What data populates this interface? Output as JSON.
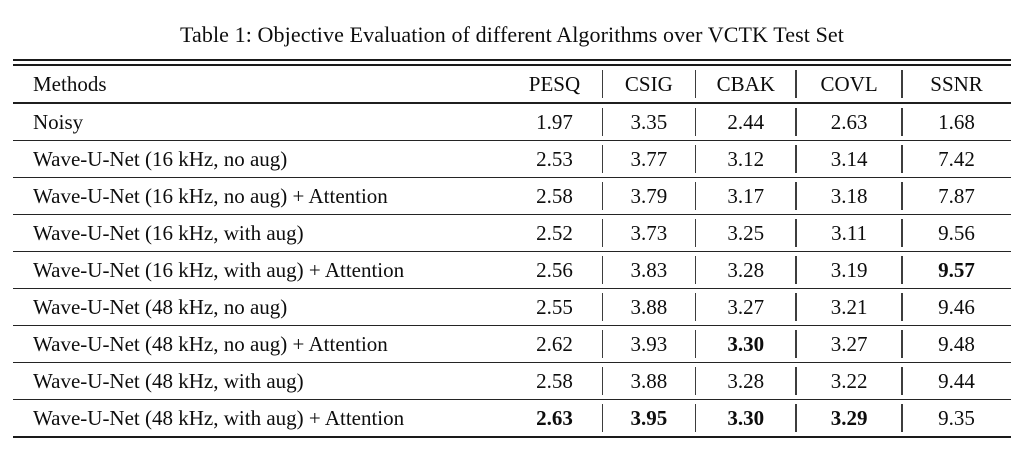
{
  "title": "Table 1: Objective Evaluation of different Algorithms over VCTK Test Set",
  "table": {
    "columns": [
      "Methods",
      "PESQ",
      "CSIG",
      "CBAK",
      "COVL",
      "SSNR"
    ],
    "rows": [
      {
        "method": "Noisy",
        "values": [
          "1.97",
          "3.35",
          "2.44",
          "2.63",
          "1.68"
        ],
        "bold": [
          false,
          false,
          false,
          false,
          false
        ]
      },
      {
        "method": "Wave-U-Net (16 kHz, no aug)",
        "values": [
          "2.53",
          "3.77",
          "3.12",
          "3.14",
          "7.42"
        ],
        "bold": [
          false,
          false,
          false,
          false,
          false
        ]
      },
      {
        "method": "Wave-U-Net (16 kHz, no aug) + Attention",
        "values": [
          "2.58",
          "3.79",
          "3.17",
          "3.18",
          "7.87"
        ],
        "bold": [
          false,
          false,
          false,
          false,
          false
        ]
      },
      {
        "method": "Wave-U-Net (16 kHz, with aug)",
        "values": [
          "2.52",
          "3.73",
          "3.25",
          "3.11",
          "9.56"
        ],
        "bold": [
          false,
          false,
          false,
          false,
          false
        ]
      },
      {
        "method": "Wave-U-Net (16 kHz, with aug) + Attention",
        "values": [
          "2.56",
          "3.83",
          "3.28",
          "3.19",
          "9.57"
        ],
        "bold": [
          false,
          false,
          false,
          false,
          true
        ]
      },
      {
        "method": "Wave-U-Net (48 kHz, no aug)",
        "values": [
          "2.55",
          "3.88",
          "3.27",
          "3.21",
          "9.46"
        ],
        "bold": [
          false,
          false,
          false,
          false,
          false
        ]
      },
      {
        "method": "Wave-U-Net (48 kHz, no aug) + Attention",
        "values": [
          "2.62",
          "3.93",
          "3.30",
          "3.27",
          "9.48"
        ],
        "bold": [
          false,
          false,
          true,
          false,
          false
        ]
      },
      {
        "method": "Wave-U-Net (48 kHz, with aug)",
        "values": [
          "2.58",
          "3.88",
          "3.28",
          "3.22",
          "9.44"
        ],
        "bold": [
          false,
          false,
          false,
          false,
          false
        ]
      },
      {
        "method": "Wave-U-Net (48 kHz, with aug) + Attention",
        "values": [
          "2.63",
          "3.95",
          "3.30",
          "3.29",
          "9.35"
        ],
        "bold": [
          true,
          true,
          true,
          true,
          false
        ]
      }
    ]
  }
}
